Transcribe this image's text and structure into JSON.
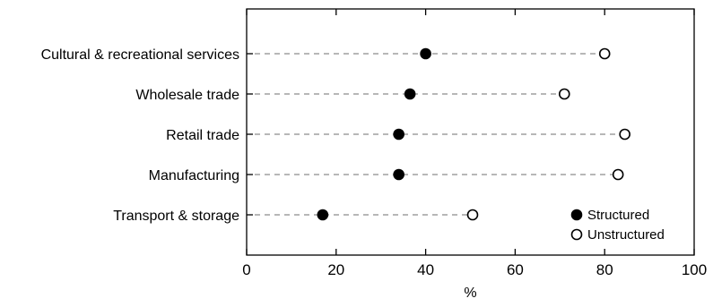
{
  "chart_data": {
    "type": "scatter",
    "title": "",
    "xlabel": "%",
    "ylabel": "",
    "xlim": [
      0,
      100
    ],
    "xticks": [
      "0",
      "20",
      "40",
      "60",
      "80",
      "100"
    ],
    "grid": false,
    "legend_position": "bottom-right",
    "categories": [
      "Cultural & recreational services",
      "Wholesale trade",
      "Retail trade",
      "Manufacturing",
      "Transport & storage"
    ],
    "series": [
      {
        "name": "Structured",
        "marker": "filled-circle",
        "color": "#000000",
        "values": [
          40,
          36.5,
          34,
          34,
          17
        ]
      },
      {
        "name": "Unstructured",
        "marker": "open-circle",
        "color": "#000000",
        "values": [
          80,
          71,
          84.5,
          83,
          50.5
        ]
      }
    ]
  }
}
